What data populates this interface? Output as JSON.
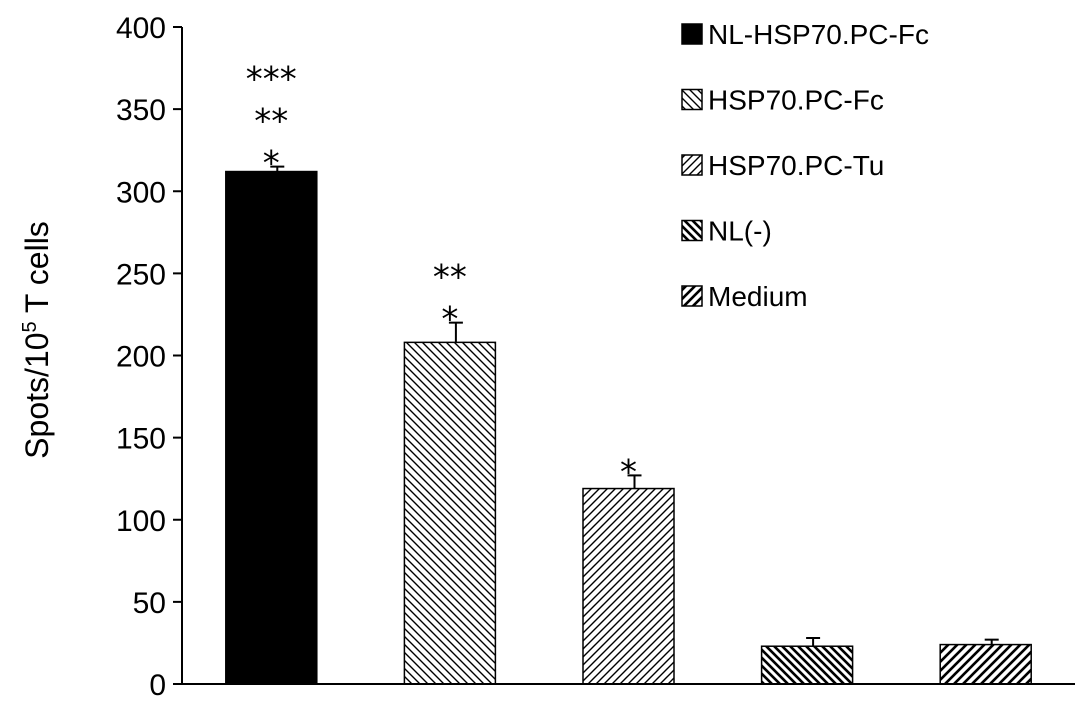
{
  "chart_data": {
    "type": "bar",
    "categories": [
      "NL-HSP70.PC-Fc",
      "HSP70.PC-Fc",
      "HSP70.PC-Tu",
      "NL(-)",
      "Medium"
    ],
    "values": [
      312,
      208,
      119,
      23,
      24
    ],
    "errors": [
      3,
      12,
      8,
      5,
      3
    ],
    "significance": [
      [
        "***",
        "**",
        "*"
      ],
      [
        "**",
        "*"
      ],
      [
        "*"
      ],
      [],
      []
    ],
    "patterns": [
      "solid",
      "dense-diag-down",
      "diag-up",
      "bold-diag-down",
      "bold-diag-up"
    ],
    "ylabel_main": "Spots/10",
    "ylabel_sup": "5",
    "ylabel_tail": " T cells",
    "ylim": [
      0,
      400
    ],
    "yticks": [
      "0",
      "50",
      "100",
      "150",
      "200",
      "250",
      "300",
      "350",
      "400"
    ],
    "legend": {
      "placement": "top-right",
      "entries": [
        "NL-HSP70.PC-Fc",
        "HSP70.PC-Fc",
        "HSP70.PC-Tu",
        "NL(-)",
        "Medium"
      ]
    },
    "grid": false,
    "colors": {
      "bar_stroke": "#000000",
      "fill": "#000000",
      "background": "#ffffff"
    }
  }
}
